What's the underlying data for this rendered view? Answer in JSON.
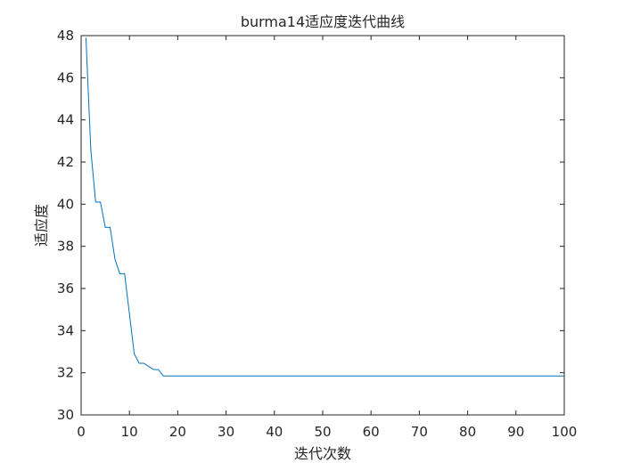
{
  "chart_data": {
    "type": "line",
    "title": "burma14适应度迭代曲线",
    "xlabel": "迭代次数",
    "ylabel": "适应度",
    "xlim": [
      0,
      100
    ],
    "ylim": [
      30,
      48
    ],
    "xticks": [
      0,
      10,
      20,
      30,
      40,
      50,
      60,
      70,
      80,
      90,
      100
    ],
    "yticks": [
      30,
      32,
      34,
      36,
      38,
      40,
      42,
      44,
      46,
      48
    ],
    "grid": false,
    "line_color": "#0072BD",
    "series": [
      {
        "x": [
          1,
          2,
          3,
          4,
          5,
          6,
          7,
          8,
          9,
          10,
          11,
          12,
          13,
          14,
          15,
          16,
          17,
          18,
          19,
          20,
          100
        ],
        "values": [
          47.9,
          42.6,
          40.1,
          40.1,
          38.9,
          38.9,
          37.4,
          36.7,
          36.7,
          34.8,
          32.9,
          32.45,
          32.45,
          32.3,
          32.15,
          32.15,
          31.85,
          31.85,
          31.85,
          31.85,
          31.85
        ]
      }
    ]
  }
}
